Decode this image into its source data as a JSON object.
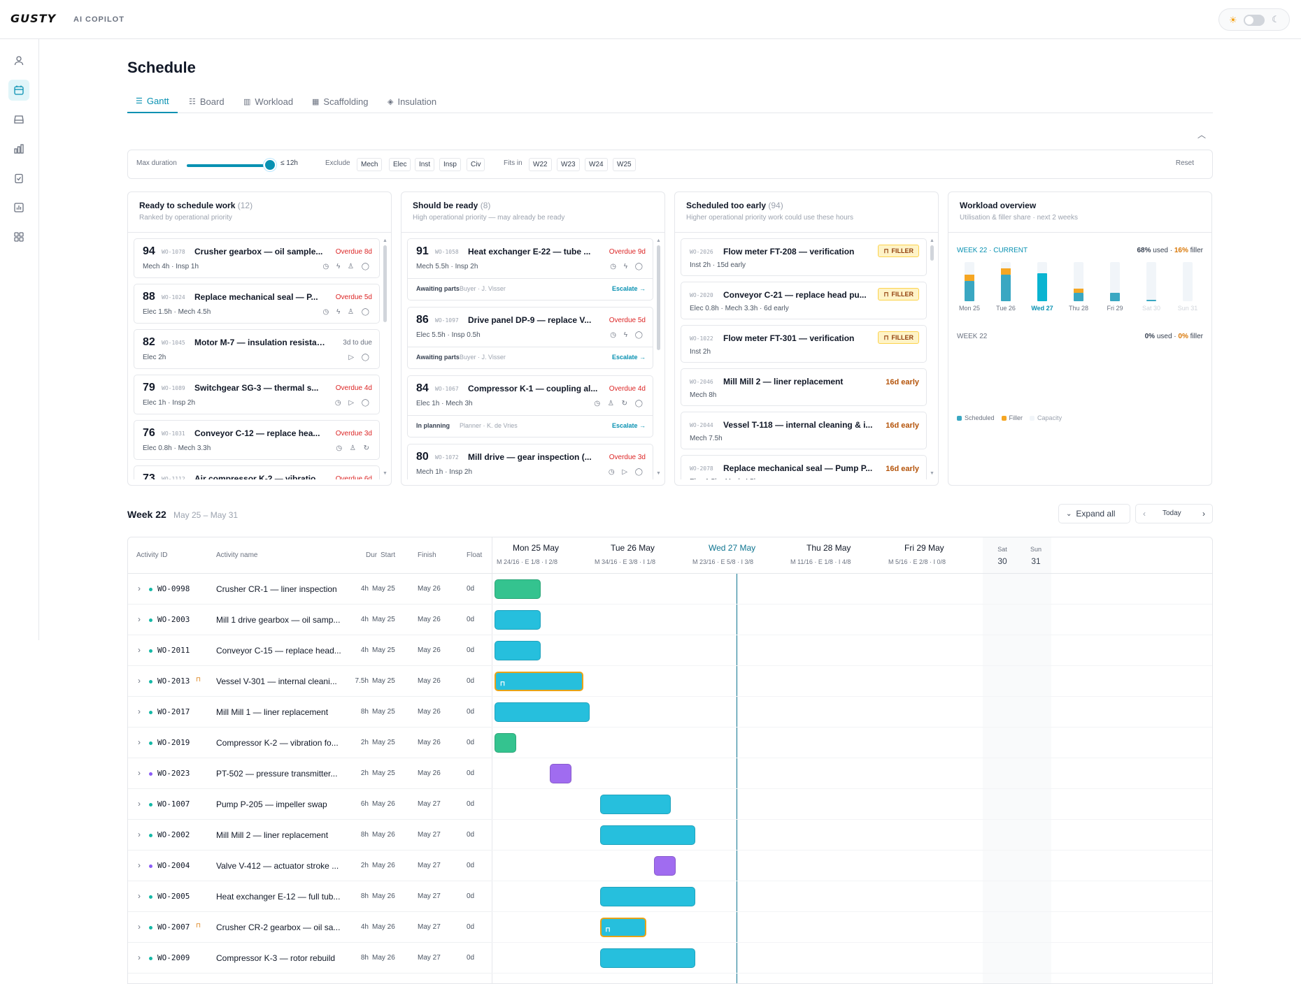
{
  "app": {
    "logo": "GUSTY",
    "subtitle": "AI COPILOT"
  },
  "page": {
    "title": "Schedule"
  },
  "tabs": [
    {
      "label": "Gantt",
      "icon": "gantt-icon"
    },
    {
      "label": "Board",
      "icon": "board-icon"
    },
    {
      "label": "Workload",
      "icon": "bar-chart-icon"
    },
    {
      "label": "Scaffolding",
      "icon": "grid-icon"
    },
    {
      "label": "Insulation",
      "icon": "layers-icon"
    }
  ],
  "filters": {
    "max_duration_label": "Max duration",
    "max_duration_value": "≤ 12h",
    "max_duration_fraction": 1.0,
    "exclude_label": "Exclude",
    "exclude_chips": [
      "Mech",
      "Elec",
      "Inst",
      "Insp",
      "Civ"
    ],
    "fits_label": "Fits in",
    "fits_chips": [
      "W22",
      "W23",
      "W24",
      "W25"
    ],
    "reset": "Reset"
  },
  "panels": {
    "ready": {
      "title": "Ready to schedule work",
      "count": "(12)",
      "subtitle": "Ranked by operational priority",
      "cards": [
        {
          "score": "94",
          "id": "WO-1078",
          "name": "Crusher gearbox — oil sample...",
          "status": "Overdue 8d",
          "meta": "Mech 4h · Insp 1h",
          "icons": "◷ ϟ ♙ ◯"
        },
        {
          "score": "88",
          "id": "WO-1024",
          "name": "Replace mechanical seal — P...",
          "status": "Overdue 5d",
          "meta": "Elec 1.5h · Mech 4.5h",
          "icons": "◷ ϟ ♙ ◯"
        },
        {
          "score": "82",
          "id": "WO-1045",
          "name": "Motor M-7 — insulation resistan...",
          "status": "3d to due",
          "meta": "Elec 2h",
          "icons": "▷ ◯"
        },
        {
          "score": "79",
          "id": "WO-1089",
          "name": "Switchgear SG-3 — thermal s...",
          "status": "Overdue 4d",
          "meta": "Elec 1h · Insp 2h",
          "icons": "◷ ▷ ◯"
        },
        {
          "score": "76",
          "id": "WO-1031",
          "name": "Conveyor C-12 — replace hea...",
          "status": "Overdue 3d",
          "meta": "Elec 0.8h · Mech 3.3h",
          "icons": "◷ ♙ ↻"
        },
        {
          "score": "73",
          "id": "WO-1112",
          "name": "Air compressor K-2 — vibratio...",
          "status": "Overdue 6d",
          "meta": "",
          "icons": ""
        }
      ]
    },
    "should": {
      "title": "Should be ready",
      "count": "(8)",
      "subtitle": "High operational priority — may already be ready",
      "cards": [
        {
          "score": "91",
          "id": "WO-1058",
          "name": "Heat exchanger E-22 — tube ...",
          "status": "Overdue 9d",
          "meta": "Mech 5.5h · Insp 2h",
          "icons": "◷ ϟ ◯",
          "f1": "Awaiting parts",
          "f2": "Buyer · J. Visser",
          "esc": "Escalate →"
        },
        {
          "score": "86",
          "id": "WO-1097",
          "name": "Drive panel DP-9 — replace V...",
          "status": "Overdue 5d",
          "meta": "Elec 5.5h · Insp 0.5h",
          "icons": "◷ ϟ ◯",
          "f1": "Awaiting parts",
          "f2": "Buyer · J. Visser",
          "esc": "Escalate →"
        },
        {
          "score": "84",
          "id": "WO-1067",
          "name": "Compressor K-1 — coupling al...",
          "status": "Overdue 4d",
          "meta": "Elec 1h · Mech 3h",
          "icons": "◷ ♙ ↻ ◯",
          "f1": "In planning",
          "f2": "Planner · K. de Vries",
          "esc": "Escalate →"
        },
        {
          "score": "80",
          "id": "WO-1072",
          "name": "Mill drive — gear inspection (...",
          "status": "Overdue 3d",
          "meta": "Mech 1h · Insp 2h",
          "icons": "◷ ▷ ◯",
          "f1": "",
          "f2": "",
          "esc": ""
        }
      ]
    },
    "early": {
      "title": "Scheduled too early",
      "count": "(94)",
      "subtitle": "Higher operational priority work could use these hours",
      "filler_label": "FILLER",
      "cards": [
        {
          "id": "WO-2026",
          "name": "Flow meter FT-208 — verification",
          "filler": true,
          "status": "",
          "meta": "Inst 2h · 15d early"
        },
        {
          "id": "WO-2020",
          "name": "Conveyor C-21 — replace head pu...",
          "filler": true,
          "status": "",
          "meta": "Elec 0.8h · Mech 3.3h · 6d early"
        },
        {
          "id": "WO-1022",
          "name": "Flow meter FT-301 — verification",
          "filler": true,
          "status": "",
          "meta": "Inst 2h"
        },
        {
          "id": "WO-2046",
          "name": "Mill Mill 2 — liner replacement",
          "filler": false,
          "status": "16d early",
          "meta": "Mech 8h"
        },
        {
          "id": "WO-2044",
          "name": "Vessel T-118 — internal cleaning & i...",
          "filler": false,
          "status": "16d early",
          "meta": "Mech 7.5h"
        },
        {
          "id": "WO-2078",
          "name": "Replace mechanical seal — Pump P...",
          "filler": false,
          "status": "16d early",
          "meta": "Elec 1.5h · Mech 4.5h"
        }
      ]
    },
    "workload": {
      "title": "Workload overview",
      "subtitle": "Utilisation & filler share · next 2 weeks",
      "week1_label": "WEEK 22 · CURRENT",
      "week1_used": "68%",
      "week1_used_suffix": "used ·",
      "week1_filler": "16%",
      "filler_suffix": "filler",
      "week2_label": "WEEK 22",
      "week2_used": "0%",
      "week2_filler": "0%",
      "days": [
        {
          "label": "Mon 25",
          "scheduled": 0.52,
          "filler": 0.16,
          "today": false,
          "weekend": false
        },
        {
          "label": "Tue 26",
          "scheduled": 0.68,
          "filler": 0.16,
          "today": false,
          "weekend": false
        },
        {
          "label": "Wed 27",
          "scheduled": 0.72,
          "filler": 0.0,
          "today": true,
          "weekend": false
        },
        {
          "label": "Thu 28",
          "scheduled": 0.22,
          "filler": 0.1,
          "today": false,
          "weekend": false
        },
        {
          "label": "Fri 29",
          "scheduled": 0.22,
          "filler": 0.0,
          "today": false,
          "weekend": false
        },
        {
          "label": "Sat 30",
          "scheduled": 0.03,
          "filler": 0.0,
          "today": false,
          "weekend": true
        },
        {
          "label": "Sun 31",
          "scheduled": 0.0,
          "filler": 0.0,
          "today": false,
          "weekend": true
        }
      ],
      "legend": [
        "Scheduled",
        "Filler",
        "Capacity"
      ],
      "colors": {
        "scheduled": "#3aa7c2",
        "filler": "#f5a623",
        "capacity": "#f1f5f9"
      }
    }
  },
  "week": {
    "title": "Week 22",
    "range": "May 25 – May 31",
    "expand_all": "Expand all",
    "today": "Today"
  },
  "gantt": {
    "headers": {
      "id": "Activity ID",
      "name": "Activity name",
      "dur": "Dur",
      "start": "Start",
      "finish": "Finish",
      "float": "Float"
    },
    "days": [
      {
        "label": "Mon 25 May",
        "sub": "M 24/16 · E 1/8 · I 2/8",
        "today": false
      },
      {
        "label": "Tue 26 May",
        "sub": "M 34/16 · E 3/8 · I 1/8",
        "today": false
      },
      {
        "label": "Wed 27 May",
        "sub": "M 23/16 · E 5/8 · I 3/8",
        "today": true
      },
      {
        "label": "Thu 28 May",
        "sub": "M 11/16 · E 1/8 · I 4/8",
        "today": false
      },
      {
        "label": "Fri 29 May",
        "sub": "M 5/16 · E 2/8 · I 0/8",
        "today": false
      }
    ],
    "weekend": [
      {
        "day": "Sat",
        "num": "30"
      },
      {
        "day": "Sun",
        "num": "31"
      }
    ],
    "rows": [
      {
        "id": "WO-0998",
        "name": "Crusher CR-1 — liner inspection",
        "dur": "4h",
        "start": "May 25",
        "finish": "May 26",
        "float": "0d",
        "dot": "#14b8a6",
        "filler": false,
        "color": "green",
        "day_start": 0,
        "hours": 4
      },
      {
        "id": "WO-2003",
        "name": "Mill 1 drive gearbox — oil samp...",
        "dur": "4h",
        "start": "May 25",
        "finish": "May 26",
        "float": "0d",
        "dot": "#14b8a6",
        "filler": false,
        "color": "teal",
        "day_start": 0,
        "hours": 4
      },
      {
        "id": "WO-2011",
        "name": "Conveyor C-15 — replace head...",
        "dur": "4h",
        "start": "May 25",
        "finish": "May 26",
        "float": "0d",
        "dot": "#14b8a6",
        "filler": false,
        "color": "teal",
        "day_start": 0,
        "hours": 4
      },
      {
        "id": "WO-2013",
        "name": "Vessel V-301 — internal cleani...",
        "dur": "7.5h",
        "start": "May 25",
        "finish": "May 26",
        "float": "0d",
        "dot": "#14b8a6",
        "filler": true,
        "color": "teal",
        "day_start": 0,
        "hours": 7.5
      },
      {
        "id": "WO-2017",
        "name": "Mill Mill 1 — liner replacement",
        "dur": "8h",
        "start": "May 25",
        "finish": "May 26",
        "float": "0d",
        "dot": "#14b8a6",
        "filler": false,
        "color": "teal",
        "day_start": 0,
        "hours": 8
      },
      {
        "id": "WO-2019",
        "name": "Compressor K-2 — vibration fo...",
        "dur": "2h",
        "start": "May 25",
        "finish": "May 26",
        "float": "0d",
        "dot": "#14b8a6",
        "filler": false,
        "color": "green",
        "day_start": 0,
        "hours": 2
      },
      {
        "id": "WO-2023",
        "name": "PT-502 — pressure transmitter...",
        "dur": "2h",
        "start": "May 25",
        "finish": "May 26",
        "float": "0d",
        "dot": "#8b5cf6",
        "filler": false,
        "color": "purple",
        "day_start": 4.5,
        "hours": 2
      },
      {
        "id": "WO-1007",
        "name": "Pump P-205 — impeller swap",
        "dur": "6h",
        "start": "May 26",
        "finish": "May 27",
        "float": "0d",
        "dot": "#14b8a6",
        "filler": false,
        "color": "teal",
        "day_start": 8.6,
        "hours": 6
      },
      {
        "id": "WO-2002",
        "name": "Mill Mill 2 — liner replacement",
        "dur": "8h",
        "start": "May 26",
        "finish": "May 27",
        "float": "0d",
        "dot": "#14b8a6",
        "filler": false,
        "color": "teal",
        "day_start": 8.6,
        "hours": 8
      },
      {
        "id": "WO-2004",
        "name": "Valve V-412 — actuator stroke ...",
        "dur": "2h",
        "start": "May 26",
        "finish": "May 27",
        "float": "0d",
        "dot": "#8b5cf6",
        "filler": false,
        "color": "purple",
        "day_start": 13,
        "hours": 2
      },
      {
        "id": "WO-2005",
        "name": "Heat exchanger E-12 — full tub...",
        "dur": "8h",
        "start": "May 26",
        "finish": "May 27",
        "float": "0d",
        "dot": "#14b8a6",
        "filler": false,
        "color": "teal",
        "day_start": 8.6,
        "hours": 8
      },
      {
        "id": "WO-2007",
        "name": "Crusher CR-2 gearbox — oil sa...",
        "dur": "4h",
        "start": "May 26",
        "finish": "May 27",
        "float": "0d",
        "dot": "#14b8a6",
        "filler": true,
        "color": "teal",
        "day_start": 8.6,
        "hours": 4
      },
      {
        "id": "WO-2009",
        "name": "Compressor K-3 — rotor rebuild",
        "dur": "8h",
        "start": "May 26",
        "finish": "May 27",
        "float": "0d",
        "dot": "#14b8a6",
        "filler": false,
        "color": "teal",
        "day_start": 8.6,
        "hours": 8
      }
    ]
  }
}
